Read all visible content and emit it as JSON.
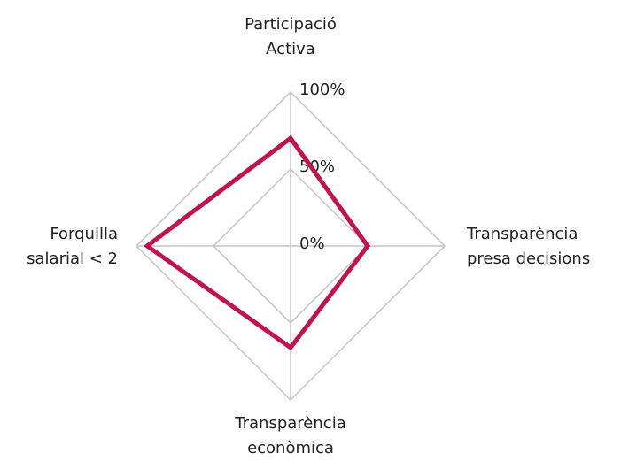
{
  "chart_data": {
    "type": "radar",
    "categories": [
      "Participació Activa",
      "Transparència presa decisions",
      "Transparència econòmica",
      "Forquilla salarial < 2"
    ],
    "series": [
      {
        "color": "#c0134f",
        "values": [
          70,
          50,
          66,
          93
        ]
      }
    ],
    "ylim": [
      0,
      100
    ],
    "yticks": [
      {
        "value": 0,
        "label": "0%"
      },
      {
        "value": 50,
        "label": "50%"
      },
      {
        "value": 100,
        "label": "100%"
      }
    ],
    "grid": true
  }
}
